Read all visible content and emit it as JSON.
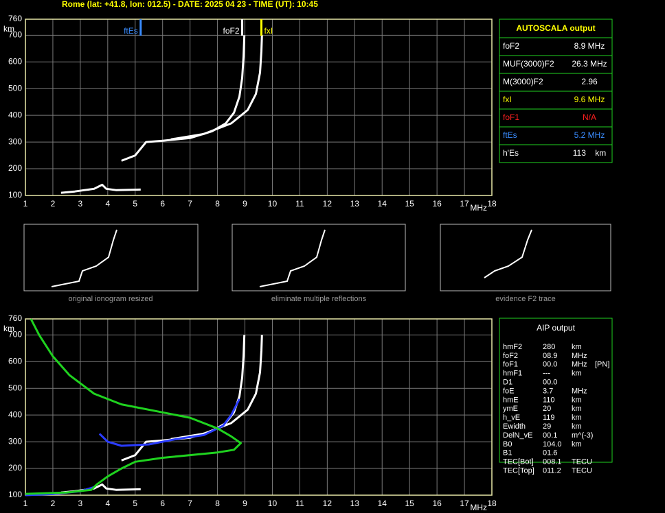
{
  "header": {
    "title": "Rome (lat: +41.8, lon: 012.5) - DATE: 2025 04 23 - TIME (UT): 10:45"
  },
  "chart_data": [
    {
      "type": "line",
      "x_label": "MHz",
      "y_label": "km",
      "xlim": [
        1,
        18
      ],
      "xticks": [
        1,
        2,
        3,
        4,
        5,
        6,
        7,
        8,
        9,
        10,
        11,
        12,
        13,
        14,
        15,
        16,
        17,
        18
      ],
      "ylim": [
        100,
        760
      ],
      "yticks": [
        100,
        200,
        300,
        400,
        500,
        600,
        700,
        760
      ],
      "grid": true,
      "series": [
        {
          "color": "#ffffff",
          "x": [
            2.3,
            2.8,
            3.5,
            3.8,
            3.95,
            4.3,
            5.2
          ],
          "values": [
            110,
            115,
            125,
            140,
            125,
            120,
            122
          ]
        },
        {
          "color": "#ffffff",
          "x": [
            4.5,
            5.0,
            5.4,
            6.0,
            7.0,
            7.8,
            8.3,
            8.6,
            8.8,
            8.9,
            8.95,
            8.98
          ],
          "values": [
            230,
            250,
            300,
            305,
            315,
            340,
            370,
            410,
            470,
            540,
            620,
            700
          ]
        },
        {
          "color": "#ffffff",
          "x": [
            6.3,
            7.5,
            8.5,
            9.1,
            9.4,
            9.55,
            9.6,
            9.62
          ],
          "values": [
            310,
            330,
            370,
            420,
            480,
            560,
            640,
            700
          ]
        }
      ],
      "markers": [
        {
          "label": "ftEs",
          "x": 5.2,
          "color": "#3a8cff"
        },
        {
          "label": "foF2",
          "x": 8.9,
          "color": "#ffffff"
        },
        {
          "label": "fxI",
          "x": 9.6,
          "color": "#ffff00"
        }
      ]
    },
    {
      "type": "line",
      "x_label": "MHz",
      "y_label": "km",
      "xlim": [
        1,
        18
      ],
      "xticks": [
        1,
        2,
        3,
        4,
        5,
        6,
        7,
        8,
        9,
        10,
        11,
        12,
        13,
        14,
        15,
        16,
        17,
        18
      ],
      "ylim": [
        100,
        760
      ],
      "yticks": [
        100,
        200,
        300,
        400,
        500,
        600,
        700,
        760
      ],
      "grid": true,
      "series": [
        {
          "color": "#ffffff",
          "x": [
            2.3,
            2.8,
            3.5,
            3.8,
            3.95,
            4.3,
            5.2
          ],
          "values": [
            110,
            115,
            125,
            140,
            125,
            120,
            122
          ]
        },
        {
          "color": "#ffffff",
          "x": [
            4.5,
            5.0,
            5.4,
            6.0,
            7.0,
            7.8,
            8.3,
            8.6,
            8.8,
            8.9,
            8.95,
            8.98
          ],
          "values": [
            230,
            250,
            300,
            305,
            315,
            340,
            370,
            410,
            470,
            540,
            620,
            700
          ]
        },
        {
          "color": "#ffffff",
          "x": [
            6.3,
            7.5,
            8.5,
            9.1,
            9.4,
            9.55,
            9.6,
            9.62
          ],
          "values": [
            310,
            330,
            370,
            420,
            480,
            560,
            640,
            700
          ]
        },
        {
          "color": "#2a3cff",
          "x": [
            1,
            2,
            3,
            3.5
          ],
          "values": [
            100,
            104,
            115,
            130
          ]
        },
        {
          "color": "#2a3cff",
          "x": [
            3.7,
            4.0,
            4.5,
            5.5,
            6.5,
            7.5,
            8.2,
            8.5,
            8.8
          ],
          "values": [
            330,
            300,
            285,
            290,
            310,
            325,
            360,
            400,
            460
          ]
        },
        {
          "color": "#1fd21f",
          "x": [
            1.2,
            1.5,
            2,
            2.6,
            3.5,
            4.5,
            6,
            7,
            8,
            8.5,
            8.85,
            8.6,
            8,
            7,
            6,
            5,
            4.5,
            4,
            3.6,
            3.4,
            2.5,
            1
          ],
          "values": [
            760,
            700,
            620,
            550,
            480,
            440,
            410,
            390,
            350,
            320,
            295,
            270,
            260,
            250,
            240,
            225,
            200,
            170,
            140,
            120,
            110,
            105
          ]
        }
      ]
    }
  ],
  "panels": [
    {
      "caption": "original ionogram resized"
    },
    {
      "caption": "eliminate multiple reflections"
    },
    {
      "caption": "evidence F2 trace"
    }
  ],
  "autoscala": {
    "title": "AUTOSCALA output",
    "rows": [
      {
        "label": "foF2",
        "value": "8.9 MHz",
        "color": "#ffffff"
      },
      {
        "label": "MUF(3000)F2",
        "value": "26.3 MHz",
        "color": "#ffffff"
      },
      {
        "label": "M(3000)F2",
        "value": "2.96",
        "color": "#ffffff"
      },
      {
        "label": "fxI",
        "value": "9.6 MHz",
        "color": "#ffff00"
      },
      {
        "label": "foF1",
        "value": "N/A",
        "color": "#ff2020"
      },
      {
        "label": "ftEs",
        "value": "5.2 MHz",
        "color": "#3a8cff"
      },
      {
        "label": "h'Es",
        "value": "113    km",
        "color": "#ffffff"
      }
    ]
  },
  "aip": {
    "title": "AIP output",
    "rows": [
      [
        "hmF2",
        "280",
        "km"
      ],
      [
        "foF2",
        "08.9",
        "MHz"
      ],
      [
        "foF1",
        "00.0",
        "MHz",
        "[PN]"
      ],
      [
        "hmF1",
        "---",
        "km"
      ],
      [
        "D1",
        "00.0"
      ],
      [
        "foE",
        "3.7",
        "MHz"
      ],
      [
        "hmE",
        "110",
        "km"
      ],
      [
        "ymE",
        "20",
        "km"
      ],
      [
        "h_vE",
        "119",
        "km"
      ],
      [
        "Ewidth",
        "29",
        "km"
      ],
      [
        "DelN_vE",
        "00.1",
        "m^(-3)"
      ],
      [
        "B0",
        "104.0",
        "km"
      ],
      [
        "B1",
        "01.6"
      ],
      [
        "TEC[Bot]",
        "008.1",
        "TECU"
      ],
      [
        "TEC[Top]",
        "011.2",
        "TECU"
      ]
    ]
  }
}
